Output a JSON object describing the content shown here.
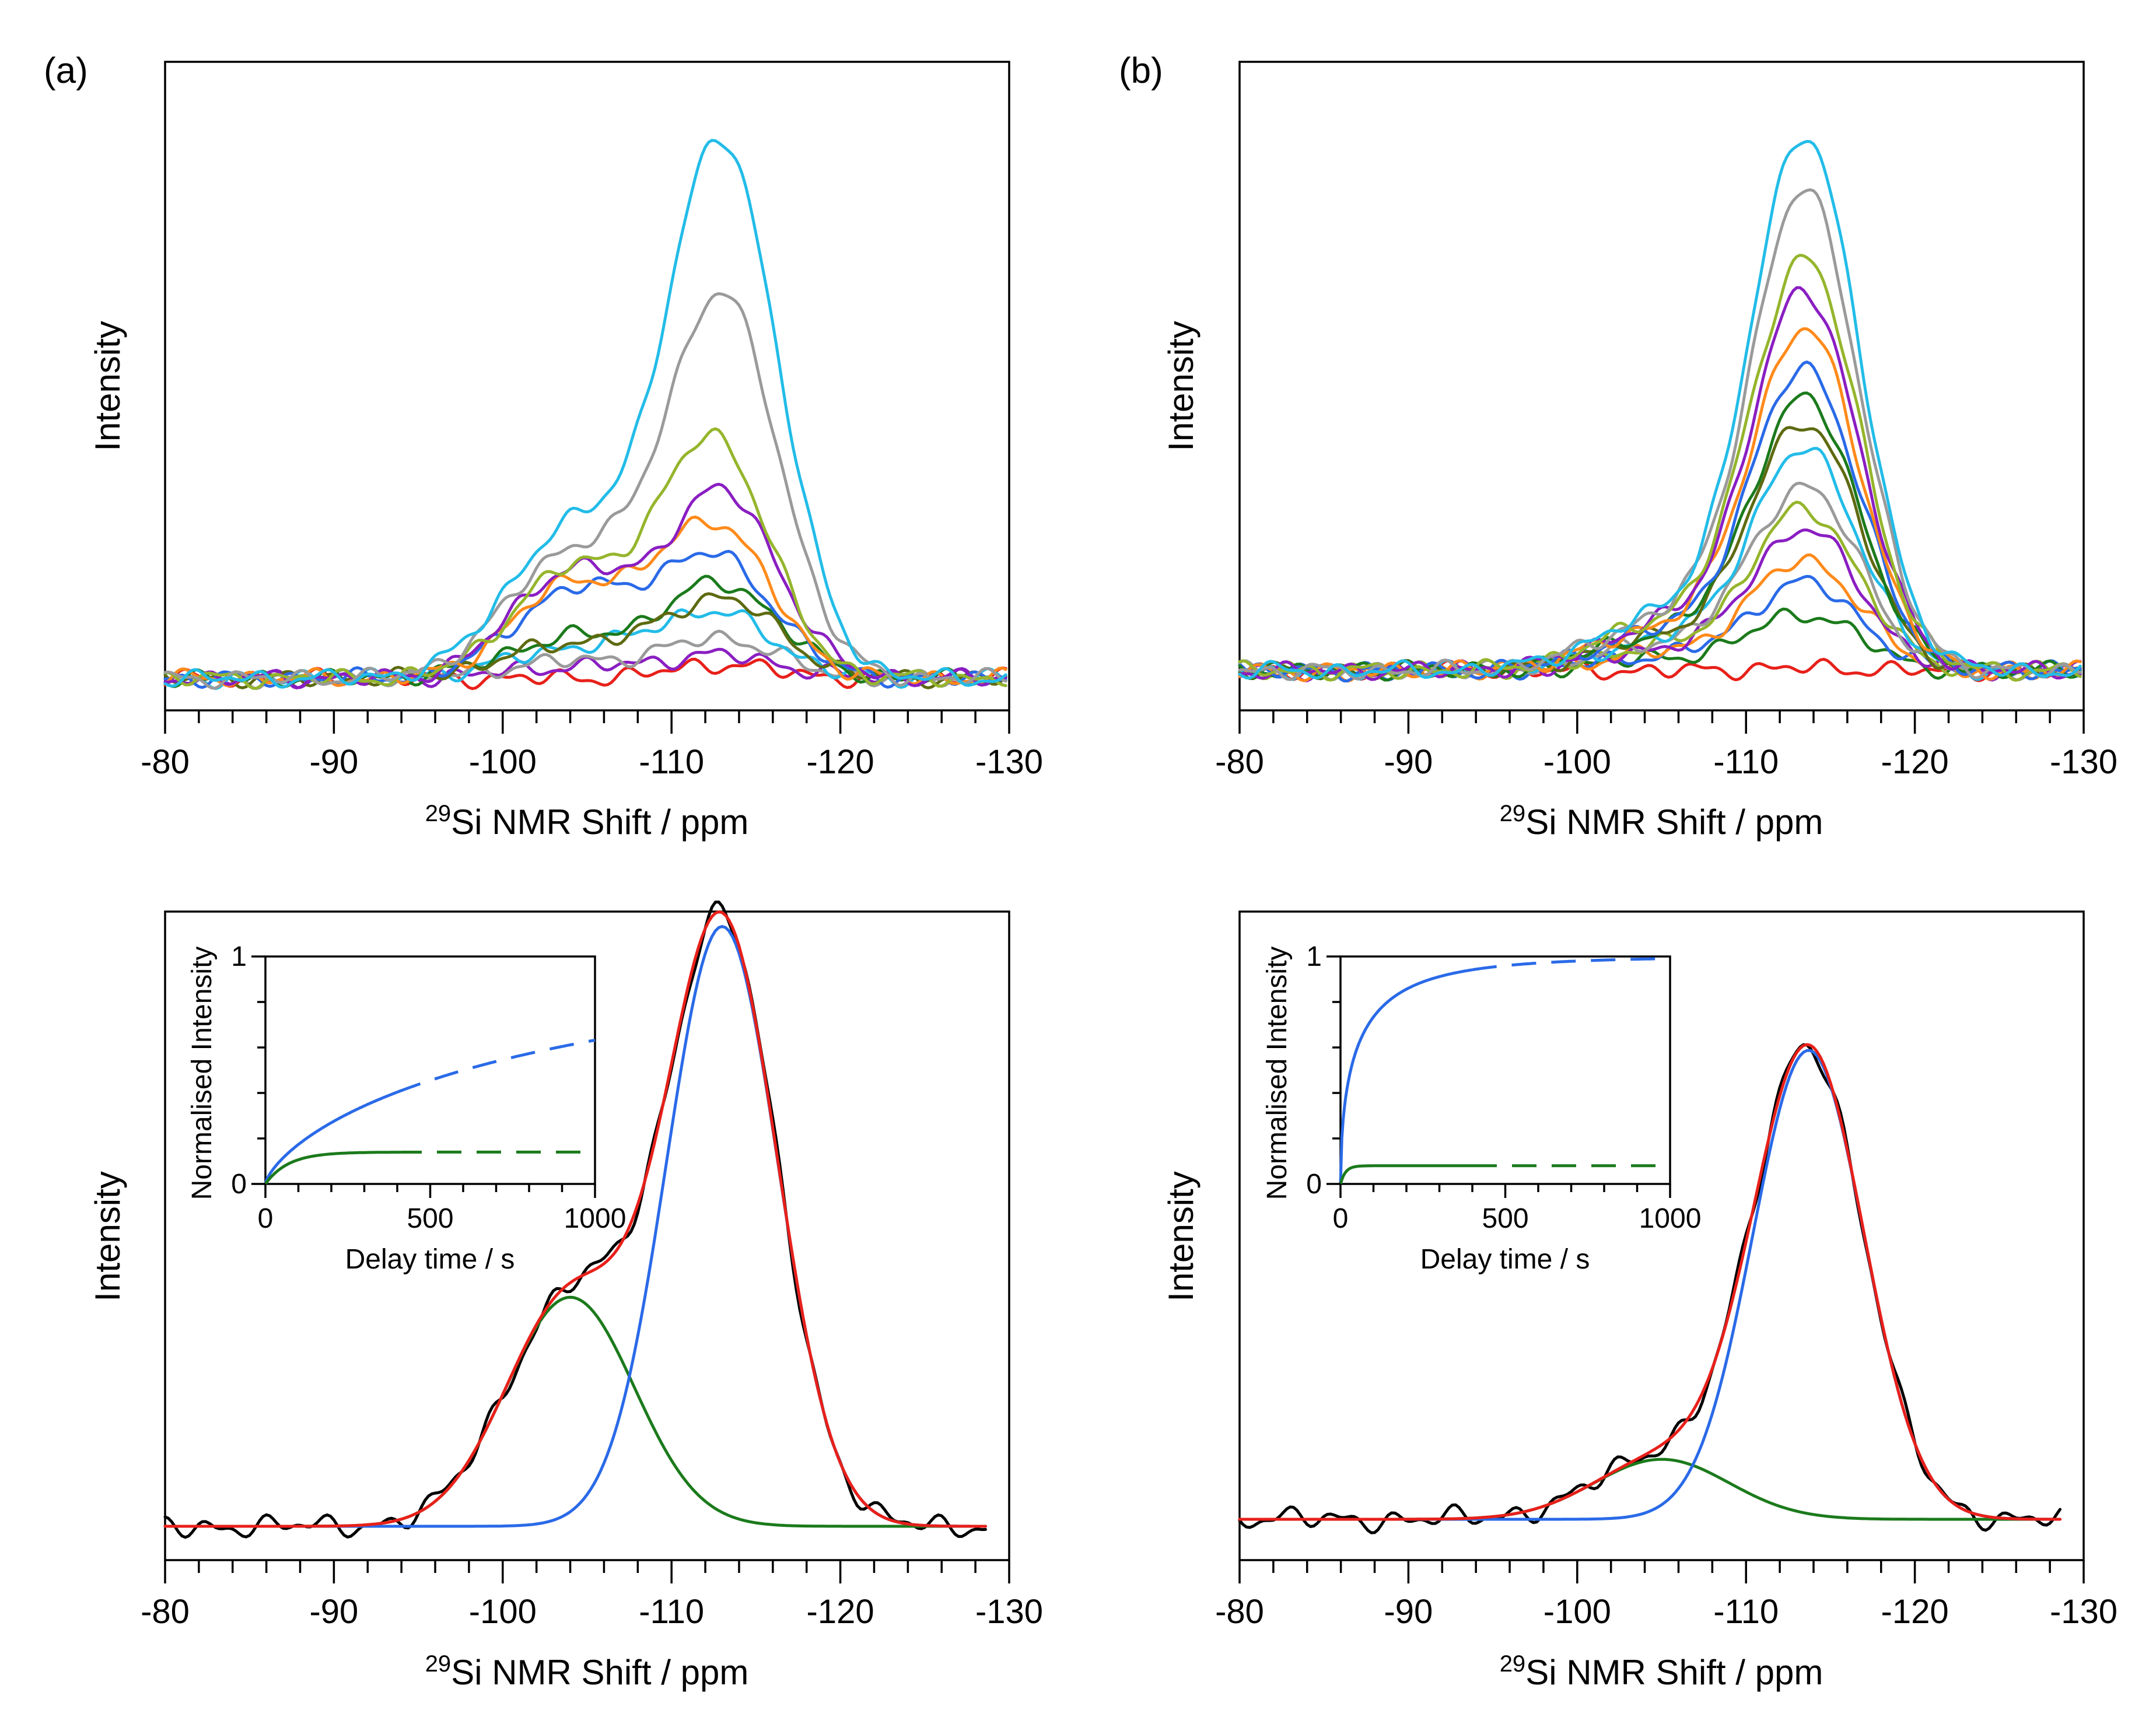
{
  "colors": {
    "red": "#e8201a",
    "blue": "#2a6ae8",
    "green": "#1b7a1b",
    "black": "#000000",
    "cyan": "#22bce8",
    "gray": "#9a9a9a",
    "olive": "#95b52c",
    "purple": "#8a1ec2",
    "orange": "#ff8a1a",
    "darkolive": "#5e6a10"
  },
  "chart_data": [
    {
      "id": "a-top",
      "panel_label": "(a)",
      "type": "line",
      "title": "",
      "xlabel_sup": "29",
      "xlabel": "Si NMR Shift / ppm",
      "ylabel": "Intensity",
      "xlim": [
        -80,
        -130
      ],
      "x_ticks": [
        "-80",
        "-90",
        "-100",
        "-110",
        "-120",
        "-130"
      ],
      "y_axis": "unlabelled",
      "series": [
        {
          "name": "s1",
          "color": "red",
          "peaks": [
            [
              -113,
              0.05,
              3
            ]
          ]
        },
        {
          "name": "s2",
          "color": "purple",
          "peaks": [
            [
              -104,
              0.04,
              4
            ],
            [
              -113,
              0.08,
              3.5
            ]
          ]
        },
        {
          "name": "s3",
          "color": "gray",
          "peaks": [
            [
              -104,
              0.06,
              4
            ],
            [
              -113,
              0.14,
              3.3
            ]
          ]
        },
        {
          "name": "s4",
          "color": "cyan",
          "peaks": [
            [
              -104,
              0.1,
              4
            ],
            [
              -112.5,
              0.23,
              3.5
            ]
          ]
        },
        {
          "name": "s5",
          "color": "green",
          "peaks": [
            [
              -104,
              0.14,
              4
            ],
            [
              -113,
              0.33,
              3.4
            ]
          ]
        },
        {
          "name": "s6",
          "color": "darkolive",
          "peaks": [
            [
              -104,
              0.12,
              4
            ],
            [
              -113,
              0.28,
              3.4
            ]
          ]
        },
        {
          "name": "s7",
          "color": "blue",
          "peaks": [
            [
              -104,
              0.3,
              3.5
            ],
            [
              -112.5,
              0.43,
              3.5
            ]
          ]
        },
        {
          "name": "s8",
          "color": "orange",
          "peaks": [
            [
              -104,
              0.33,
              3.5
            ],
            [
              -112.5,
              0.55,
              3.3
            ]
          ]
        },
        {
          "name": "s9",
          "color": "purple",
          "peaks": [
            [
              -104,
              0.38,
              3.5
            ],
            [
              -113,
              0.66,
              3.3
            ]
          ]
        },
        {
          "name": "s10",
          "color": "olive",
          "peaks": [
            [
              -104,
              0.38,
              3.5
            ],
            [
              -112.5,
              0.85,
              3.2
            ]
          ]
        },
        {
          "name": "s11",
          "color": "gray",
          "peaks": [
            [
              -104,
              0.44,
              3.8
            ],
            [
              -113,
              1.35,
              3.3
            ]
          ]
        },
        {
          "name": "s12",
          "color": "cyan",
          "peaks": [
            [
              -104,
              0.52,
              3.8
            ],
            [
              -113,
              1.9,
              3.3
            ]
          ]
        }
      ]
    },
    {
      "id": "b-top",
      "panel_label": "(b)",
      "type": "line",
      "title": "",
      "xlabel_sup": "29",
      "xlabel": "Si NMR Shift / ppm",
      "ylabel": "Intensity",
      "xlim": [
        -80,
        -130
      ],
      "x_ticks": [
        "-80",
        "-90",
        "-100",
        "-110",
        "-120",
        "-130"
      ],
      "y_axis": "unlabelled",
      "series": [
        {
          "name": "s1",
          "color": "red",
          "peaks": [
            [
              -113.5,
              0.01,
              3
            ]
          ]
        },
        {
          "name": "s2",
          "color": "green",
          "peaks": [
            [
              -105,
              0.04,
              4
            ],
            [
              -113.5,
              0.2,
              3.2
            ]
          ]
        },
        {
          "name": "s3",
          "color": "blue",
          "peaks": [
            [
              -105,
              0.05,
              4
            ],
            [
              -113.5,
              0.31,
              3.2
            ]
          ]
        },
        {
          "name": "s4",
          "color": "orange",
          "peaks": [
            [
              -105,
              0.06,
              4
            ],
            [
              -113.5,
              0.39,
              3.2
            ]
          ]
        },
        {
          "name": "s5",
          "color": "purple",
          "peaks": [
            [
              -105,
              0.07,
              4
            ],
            [
              -113.5,
              0.5,
              3.2
            ]
          ]
        },
        {
          "name": "s6",
          "color": "olive",
          "peaks": [
            [
              -105,
              0.08,
              4
            ],
            [
              -113.5,
              0.57,
              3.2
            ]
          ]
        },
        {
          "name": "s7",
          "color": "gray",
          "peaks": [
            [
              -105,
              0.09,
              4
            ],
            [
              -113.5,
              0.65,
              3.2
            ]
          ]
        },
        {
          "name": "s8",
          "color": "cyan",
          "peaks": [
            [
              -105,
              0.1,
              4
            ],
            [
              -113.5,
              0.78,
              3.2
            ]
          ]
        },
        {
          "name": "s9",
          "color": "darkolive",
          "peaks": [
            [
              -105,
              0.11,
              4
            ],
            [
              -113.5,
              0.88,
              3.2
            ]
          ]
        },
        {
          "name": "s10",
          "color": "green",
          "peaks": [
            [
              -105,
              0.12,
              4
            ],
            [
              -113.5,
              0.96,
              3.2
            ]
          ]
        },
        {
          "name": "s11",
          "color": "blue",
          "peaks": [
            [
              -105,
              0.13,
              4
            ],
            [
              -113.5,
              1.07,
              3.2
            ]
          ]
        },
        {
          "name": "s12",
          "color": "orange",
          "peaks": [
            [
              -105,
              0.14,
              4
            ],
            [
              -113.5,
              1.21,
              3.2
            ]
          ]
        },
        {
          "name": "s13",
          "color": "purple",
          "peaks": [
            [
              -105,
              0.15,
              4
            ],
            [
              -113.5,
              1.34,
              3.2
            ]
          ]
        },
        {
          "name": "s14",
          "color": "olive",
          "peaks": [
            [
              -105,
              0.16,
              4
            ],
            [
              -113.5,
              1.46,
              3.2
            ]
          ]
        },
        {
          "name": "s15",
          "color": "gray",
          "peaks": [
            [
              -105,
              0.17,
              4
            ],
            [
              -113.5,
              1.7,
              3.2
            ]
          ]
        },
        {
          "name": "s16",
          "color": "cyan",
          "peaks": [
            [
              -105,
              0.18,
              4
            ],
            [
              -113.5,
              1.9,
              3.2
            ]
          ]
        }
      ]
    },
    {
      "id": "a-bottom",
      "type": "line",
      "title": "",
      "xlabel_sup": "29",
      "xlabel": "Si NMR Shift / ppm",
      "ylabel": "Intensity",
      "xlim": [
        -80,
        -130
      ],
      "x_ticks": [
        "-80",
        "-90",
        "-100",
        "-110",
        "-120",
        "-130"
      ],
      "y_axis": "unlabelled",
      "series": [
        {
          "name": "experimental",
          "color": "black",
          "peaks": [
            [
              -104,
              0.42,
              3.8
            ],
            [
              -113,
              1.1,
              3.3
            ]
          ]
        },
        {
          "name": "fit total",
          "color": "red",
          "peaks": [
            [
              -104,
              0.42,
              3.8
            ],
            [
              -113,
              1.1,
              3.3
            ]
          ]
        },
        {
          "name": "Q4 component",
          "color": "blue",
          "peaks": [
            [
              -113,
              1.1,
              3.3
            ]
          ]
        },
        {
          "name": "Q3 component",
          "color": "green",
          "peaks": [
            [
              -104,
              0.42,
              3.8
            ]
          ]
        }
      ],
      "inset": {
        "type": "line",
        "xlabel": "Delay time / s",
        "ylabel": "Normalised Intensity",
        "xlim": [
          0,
          1000
        ],
        "ylim": [
          0,
          1
        ],
        "x_ticks": [
          "0",
          "500",
          "1000"
        ],
        "y_ticks": [
          "0",
          "1"
        ],
        "series": [
          {
            "name": "blue",
            "color": "blue",
            "A": 1.0,
            "T": 1000,
            "beta": 0.72,
            "solid_to": 400
          },
          {
            "name": "green",
            "color": "green",
            "A": 0.14,
            "T": 70,
            "beta": 1.0,
            "solid_to": 400
          }
        ]
      }
    },
    {
      "id": "b-bottom",
      "type": "line",
      "title": "",
      "xlabel_sup": "29",
      "xlabel": "Si NMR Shift / ppm",
      "ylabel": "Intensity",
      "xlim": [
        -80,
        -130
      ],
      "x_ticks": [
        "-80",
        "-90",
        "-100",
        "-110",
        "-120",
        "-130"
      ],
      "y_axis": "unlabelled",
      "series": [
        {
          "name": "experimental",
          "color": "black",
          "peaks": [
            [
              -105,
              0.11,
              4
            ],
            [
              -113.7,
              0.86,
              3.3
            ]
          ]
        },
        {
          "name": "fit total",
          "color": "red",
          "peaks": [
            [
              -105,
              0.11,
              4
            ],
            [
              -113.7,
              0.86,
              3.3
            ]
          ]
        },
        {
          "name": "Q4 component",
          "color": "blue",
          "peaks": [
            [
              -113.7,
              0.86,
              3.3
            ]
          ]
        },
        {
          "name": "Q3 component",
          "color": "green",
          "peaks": [
            [
              -105,
              0.11,
              4
            ]
          ]
        }
      ],
      "inset": {
        "type": "line",
        "xlabel": "Delay time / s",
        "ylabel": "Normalised Intensity",
        "xlim": [
          0,
          1000
        ],
        "ylim": [
          0,
          1
        ],
        "x_ticks": [
          "0",
          "500",
          "1000"
        ],
        "y_ticks": [
          "0",
          "1"
        ],
        "series": [
          {
            "name": "blue",
            "color": "blue",
            "A": 1.0,
            "T": 60,
            "beta": 0.55,
            "solid_to": 400
          },
          {
            "name": "green",
            "color": "green",
            "A": 0.08,
            "T": 15,
            "beta": 1.0,
            "solid_to": 400
          }
        ]
      }
    }
  ]
}
